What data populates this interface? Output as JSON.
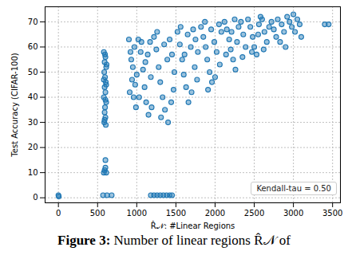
{
  "chart_data": {
    "type": "scatter",
    "x_label": "R̂𝒩: #Linear Regions",
    "y_label": "Test Accuracy (CIFAR-100)",
    "caption": "Figure 3: Number of linear regions R̂𝒩 of",
    "annotations": [
      "Kendall-tau = 0.50"
    ],
    "color": "#1f77b4",
    "marker": "circle",
    "grid": true,
    "xlim": [
      -170,
      3600
    ],
    "ylim": [
      -2,
      76
    ],
    "xticks": [
      0,
      500,
      1000,
      1500,
      2000,
      2500,
      3000,
      3500
    ],
    "yticks": [
      0,
      10,
      20,
      30,
      40,
      50,
      60,
      70
    ],
    "x": [
      580,
      600,
      590,
      610,
      585,
      595,
      605,
      590,
      600,
      580,
      610,
      595,
      590,
      600,
      585,
      605,
      595,
      610,
      580,
      600,
      590,
      615,
      600,
      590,
      610,
      600,
      580,
      0,
      5,
      570,
      620,
      680,
      1180,
      1220,
      1260,
      1300,
      1340,
      1380,
      1420,
      1450,
      900,
      920,
      950,
      980,
      960,
      990,
      930,
      970,
      1000,
      940,
      910,
      1020,
      1050,
      1080,
      1100,
      1120,
      1150,
      1060,
      1140,
      1180,
      1030,
      1170,
      1110,
      1190,
      1220,
      1250,
      1280,
      1300,
      1330,
      1360,
      1400,
      1420,
      1450,
      1480,
      1260,
      1350,
      1390,
      1470,
      1310,
      1440,
      1520,
      1550,
      1580,
      1600,
      1630,
      1660,
      1700,
      1720,
      1750,
      1780,
      1560,
      1650,
      1690,
      1740,
      1770,
      1610,
      1820,
      1850,
      1880,
      1900,
      1930,
      1960,
      2000,
      2050,
      2080,
      1870,
      1950,
      1990,
      2020,
      2060,
      1910,
      2120,
      2150,
      2180,
      2200,
      2230,
      2260,
      2300,
      2330,
      2360,
      2390,
      2140,
      2210,
      2280,
      2350,
      2250,
      2420,
      2450,
      2480,
      2500,
      2530,
      2560,
      2600,
      2630,
      2660,
      2690,
      2470,
      2550,
      2620,
      2580,
      2720,
      2750,
      2780,
      2800,
      2850,
      2880,
      2920,
      2950,
      2980,
      3000,
      3020,
      3050,
      3080,
      3100,
      2830,
      2900,
      3400,
      3450
    ],
    "values": [
      58,
      56,
      54,
      52,
      50,
      48,
      46,
      44,
      42,
      40,
      38,
      36,
      34,
      32,
      30,
      29,
      57,
      45,
      47,
      39,
      31,
      53,
      15,
      11,
      10,
      12,
      10,
      1,
      0.5,
      1,
      1,
      1,
      1,
      1,
      1,
      1,
      1,
      1,
      1,
      1,
      63,
      58,
      52,
      45,
      40,
      36,
      55,
      60,
      49,
      47,
      42,
      63,
      58,
      51,
      44,
      38,
      33,
      62,
      57,
      48,
      40,
      62,
      54,
      36,
      64,
      59,
      52,
      46,
      40,
      35,
      30,
      63,
      57,
      50,
      66,
      61,
      55,
      43,
      32,
      38,
      66,
      61,
      55,
      49,
      44,
      38,
      42,
      67,
      63,
      58,
      68,
      65,
      60,
      52,
      47,
      57,
      68,
      64,
      60,
      55,
      50,
      46,
      48,
      69,
      66,
      70,
      67,
      62,
      58,
      53,
      43,
      70,
      67,
      63,
      59,
      55,
      51,
      68,
      70,
      65,
      60,
      57,
      66,
      62,
      56,
      71,
      71,
      68,
      64,
      60,
      57,
      69,
      71,
      66,
      62,
      68,
      58,
      65,
      59,
      72,
      70,
      67,
      64,
      71,
      69,
      66,
      72,
      70,
      68,
      73,
      66,
      71,
      69,
      64,
      62,
      60,
      69,
      69
    ]
  }
}
